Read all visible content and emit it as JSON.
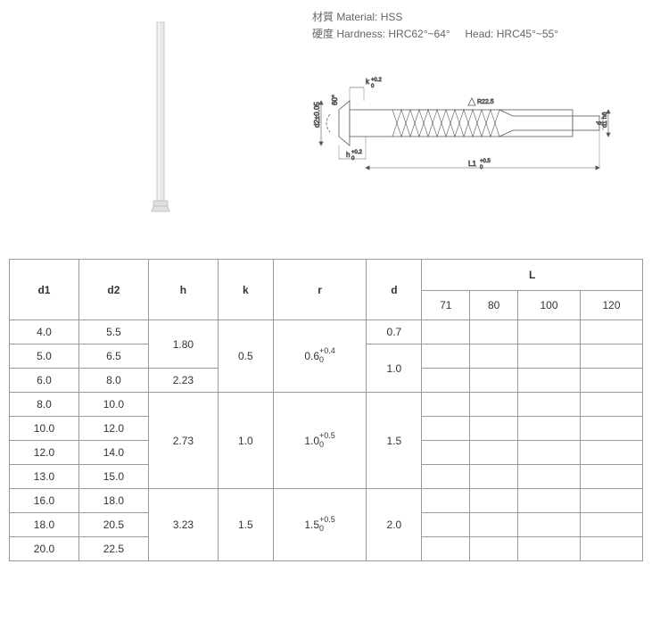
{
  "material_info": {
    "material_label": "材質 Material:",
    "material_value": "HSS",
    "hardness_label": "硬度 Hardness:",
    "hardness_value": "HRC62°~64°",
    "head_label": "Head:",
    "head_value": "HRC45°~55°"
  },
  "drawing_labels": {
    "angle": "60°",
    "d2_tol": "d2±0.05",
    "k_tol": "k",
    "k_tol_sup": "+0.2",
    "k_tol_sub": "0",
    "h_tol": "h",
    "h_tol_sup": "+0.2",
    "h_tol_sub": "0",
    "r_label": "R22.5",
    "L1_label": "L1",
    "L1_sup": "+0.5",
    "L1_sub": "0",
    "d1h6": "d1 h6",
    "d_label": "d"
  },
  "table": {
    "headers": [
      "d1",
      "d2",
      "h",
      "k",
      "r",
      "d"
    ],
    "L_header": "L",
    "L_values": [
      "71",
      "80",
      "100",
      "120"
    ],
    "rows": [
      {
        "d1": "4.0",
        "d2": "5.5",
        "h": "1.80",
        "h_span": 2,
        "k": "0.5",
        "k_span": 3,
        "r": "0.6",
        "r_tol_top": "+0.4",
        "r_tol_bot": "0",
        "r_span": 3,
        "d": "0.7",
        "d_span": 1
      },
      {
        "d1": "5.0",
        "d2": "6.5",
        "d": "1.0",
        "d_span": 2
      },
      {
        "d1": "6.0",
        "d2": "8.0",
        "h": "2.23",
        "h_span": 1
      },
      {
        "d1": "8.0",
        "d2": "10.0",
        "h": "2.73",
        "h_span": 4,
        "k": "1.0",
        "k_span": 4,
        "r": "1.0",
        "r_tol_top": "+0.5",
        "r_tol_bot": "0",
        "r_span": 4,
        "d": "1.5",
        "d_span": 4
      },
      {
        "d1": "10.0",
        "d2": "12.0"
      },
      {
        "d1": "12.0",
        "d2": "14.0"
      },
      {
        "d1": "13.0",
        "d2": "15.0"
      },
      {
        "d1": "16.0",
        "d2": "18.0",
        "h": "3.23",
        "h_span": 3,
        "k": "1.5",
        "k_span": 3,
        "r": "1.5",
        "r_tol_top": "+0.5",
        "r_tol_bot": "0",
        "r_span": 3,
        "d": "2.0",
        "d_span": 3
      },
      {
        "d1": "18.0",
        "d2": "20.5"
      },
      {
        "d1": "20.0",
        "d2": "22.5"
      }
    ]
  },
  "colors": {
    "text": "#333333",
    "light_text": "#666666",
    "border": "#999999",
    "pin_fill": "#e0e0e0",
    "pin_stroke": "#aaaaaa",
    "drawing_stroke": "#555555"
  }
}
